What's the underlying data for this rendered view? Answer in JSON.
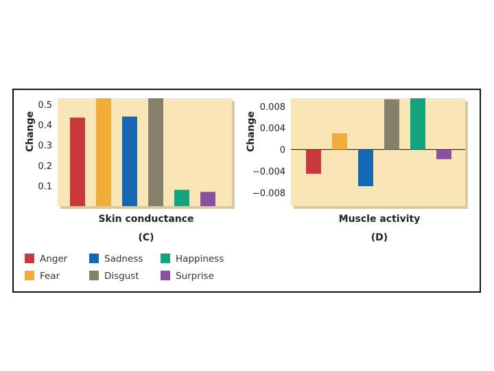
{
  "chart_data": [
    {
      "type": "bar",
      "panel_label": "(C)",
      "xlabel": "Skin conductance",
      "ylabel": "Change",
      "ylim": [
        0,
        0.53
      ],
      "yticks": [
        "0.5",
        "0.4",
        "0.3",
        "0.2",
        "0.1"
      ],
      "ytick_values": [
        0.5,
        0.4,
        0.3,
        0.2,
        0.1
      ],
      "categories": [
        "Anger",
        "Fear",
        "Sadness",
        "Disgust",
        "Happiness",
        "Surprise"
      ],
      "values": [
        0.435,
        0.53,
        0.44,
        0.53,
        0.08,
        0.07
      ],
      "grid": false
    },
    {
      "type": "bar",
      "panel_label": "(D)",
      "xlabel": "Muscle activity",
      "ylabel": "Change",
      "ylim": [
        -0.0105,
        0.0095
      ],
      "yticks": [
        "0.008",
        "0.004",
        "0",
        "−0.004",
        "−0.008"
      ],
      "ytick_values": [
        0.008,
        0.004,
        0,
        -0.004,
        -0.008
      ],
      "categories": [
        "Anger",
        "Fear",
        "Sadness",
        "Disgust",
        "Happiness",
        "Surprise"
      ],
      "values": [
        -0.0045,
        0.003,
        -0.0068,
        0.0093,
        0.0095,
        -0.0018
      ],
      "grid": false
    }
  ],
  "legend": {
    "items": [
      {
        "label": "Anger",
        "color": "#c8393b"
      },
      {
        "label": "Fear",
        "color": "#f0ad3a"
      },
      {
        "label": "Sadness",
        "color": "#1566b3"
      },
      {
        "label": "Disgust",
        "color": "#84806a"
      },
      {
        "label": "Happiness",
        "color": "#14a37f"
      },
      {
        "label": "Surprise",
        "color": "#8b4fa0"
      }
    ]
  },
  "colors": {
    "plot_background": "#f9e6b6",
    "plot_shadow": "#d9c9a3"
  }
}
